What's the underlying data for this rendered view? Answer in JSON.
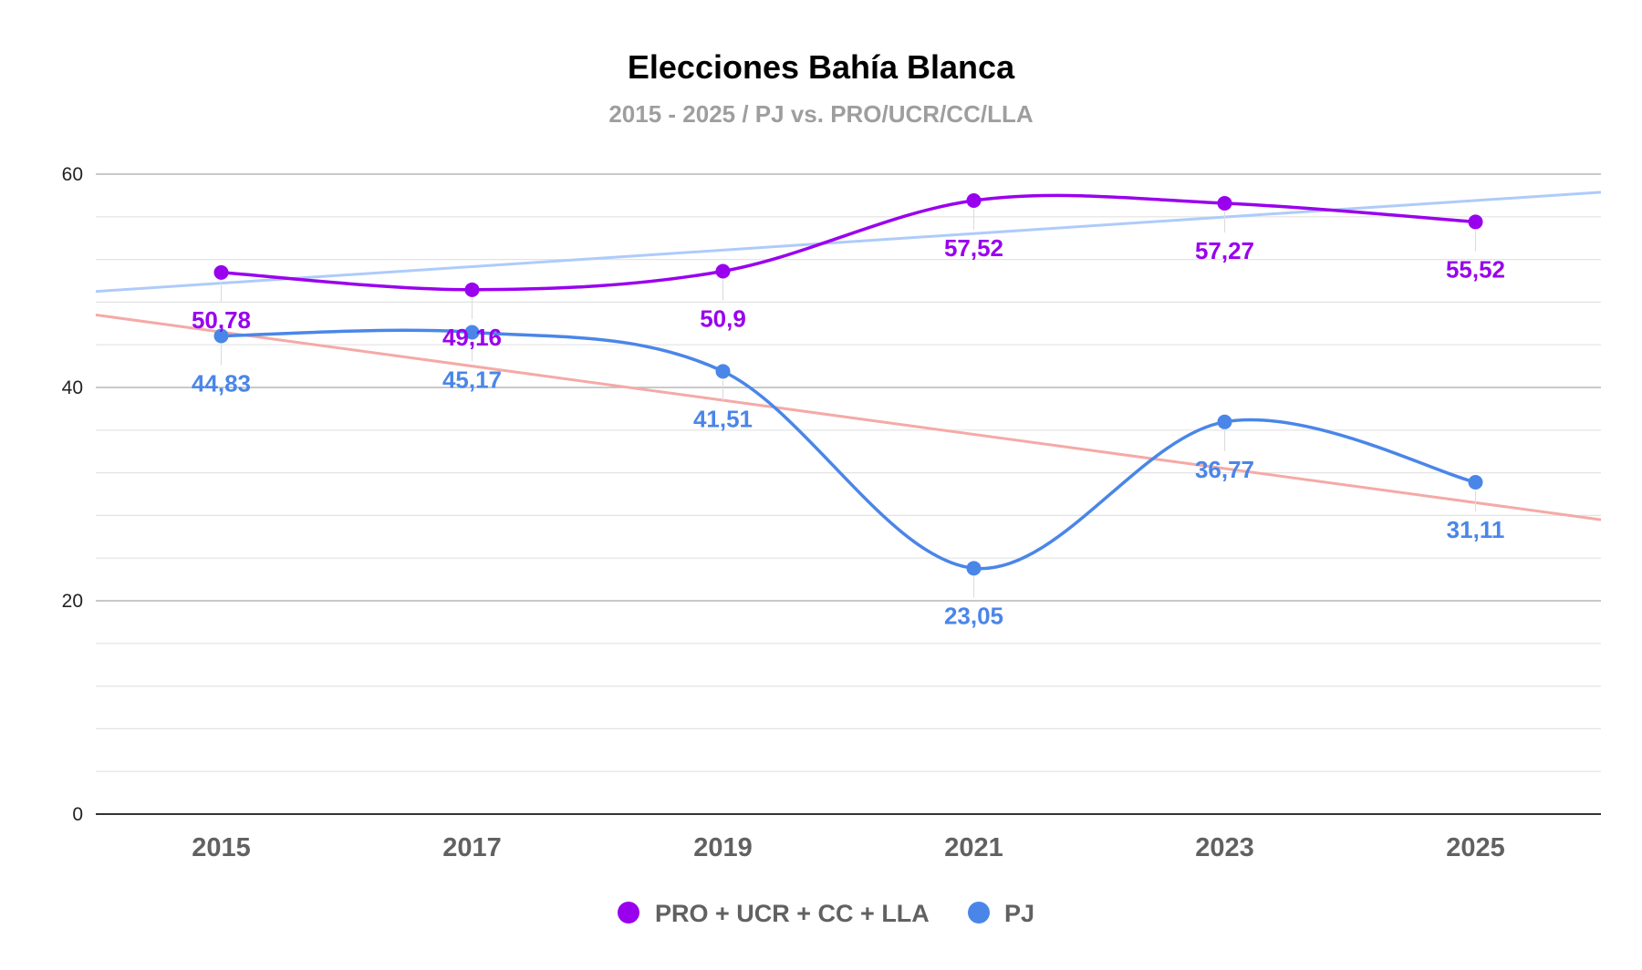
{
  "chart_data": {
    "type": "line",
    "title": "Elecciones Bahía Blanca",
    "subtitle": "2015 - 2025 / PJ vs. PRO/UCR/CC/LLA",
    "xlabel": "",
    "ylabel": "",
    "categories": [
      "2015",
      "2017",
      "2019",
      "2021",
      "2023",
      "2025"
    ],
    "ylim": [
      0,
      60
    ],
    "yticks": [
      "0",
      "20",
      "40",
      "60"
    ],
    "grid": true,
    "legend_position": "bottom",
    "series": [
      {
        "name": "PRO + UCR + CC + LLA",
        "color": "#9900ee",
        "values": [
          50.78,
          49.16,
          50.9,
          57.52,
          57.27,
          55.52
        ],
        "labels": [
          "50,78",
          "49,16",
          "50,9",
          "57,52",
          "57,27",
          "55,52"
        ],
        "trendline": {
          "color": "#aecbfa",
          "start": 49.0,
          "end": 58.3
        }
      },
      {
        "name": "PJ",
        "color": "#4a86e8",
        "values": [
          44.83,
          45.17,
          41.51,
          23.05,
          36.77,
          31.11
        ],
        "labels": [
          "44,83",
          "45,17",
          "41,51",
          "23,05",
          "36,77",
          "31,11"
        ],
        "trendline": {
          "color": "#f4aaa6",
          "start": 46.8,
          "end": 27.6
        }
      }
    ]
  }
}
